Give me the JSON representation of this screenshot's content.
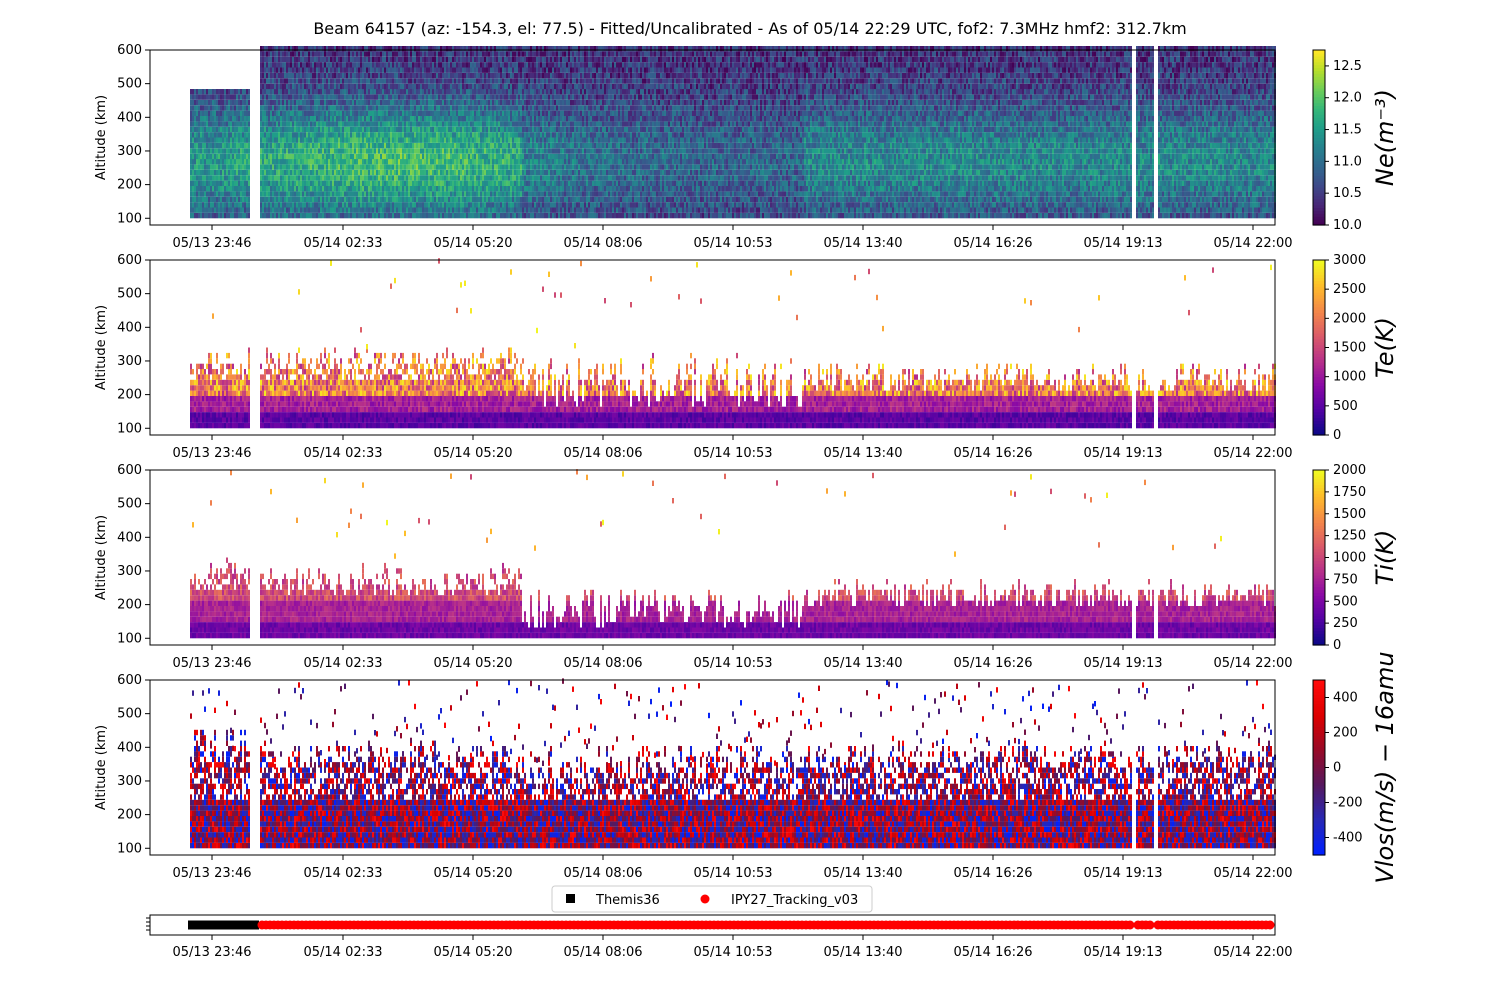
{
  "chart_data": {
    "title": "Beam 64157 (az: -154.3, el: 77.5) - Fitted/Uncalibrated - As of 05/14 22:29 UTC, fof2: 7.3MHz  hmf2: 312.7km",
    "type": "heatmap",
    "time_ticks": [
      "05/13 23:46",
      "05/14 02:33",
      "05/14 05:20",
      "05/14 08:06",
      "05/14 10:53",
      "05/14 13:40",
      "05/14 16:26",
      "05/14 19:13",
      "05/14 22:00"
    ],
    "panels": [
      {
        "id": "ne",
        "ylabel": "Altitude (km)",
        "yticks": [
          "100",
          "200",
          "300",
          "400",
          "500",
          "600"
        ],
        "ylim": [
          80,
          600
        ],
        "colorbar_label": "Ne(m^-3)",
        "colorbar_ticks": [
          "10.0",
          "10.5",
          "11.0",
          "11.5",
          "12.0",
          "12.5"
        ],
        "clim": [
          10.0,
          12.75
        ],
        "colormap": "viridis"
      },
      {
        "id": "te",
        "ylabel": "Altitude (km)",
        "yticks": [
          "100",
          "200",
          "300",
          "400",
          "500",
          "600"
        ],
        "ylim": [
          80,
          600
        ],
        "colorbar_label": "Te(K)",
        "colorbar_ticks": [
          "0",
          "500",
          "1000",
          "1500",
          "2000",
          "2500",
          "3000"
        ],
        "clim": [
          0,
          3000
        ],
        "colormap": "plasma"
      },
      {
        "id": "ti",
        "ylabel": "Altitude (km)",
        "yticks": [
          "100",
          "200",
          "300",
          "400",
          "500",
          "600"
        ],
        "ylim": [
          80,
          600
        ],
        "colorbar_label": "Ti(K)",
        "colorbar_ticks": [
          "0",
          "250",
          "500",
          "750",
          "1000",
          "1250",
          "1500",
          "1750",
          "2000"
        ],
        "clim": [
          0,
          2000
        ],
        "colormap": "plasma"
      },
      {
        "id": "vlos",
        "ylabel": "Altitude (km)",
        "yticks": [
          "100",
          "200",
          "300",
          "400",
          "500",
          "600"
        ],
        "ylim": [
          80,
          600
        ],
        "colorbar_label": "Vlos(m/s) - 16amu",
        "colorbar_ticks": [
          "-400",
          "-200",
          "0",
          "200",
          "400"
        ],
        "clim": [
          -500,
          500
        ],
        "colormap": "bwr-dark"
      }
    ],
    "legend": [
      {
        "name": "Themis36",
        "color": "#000000",
        "marker": "square"
      },
      {
        "name": "IPY27_Tracking_v03",
        "color": "#ff0000",
        "marker": "circle"
      }
    ]
  }
}
